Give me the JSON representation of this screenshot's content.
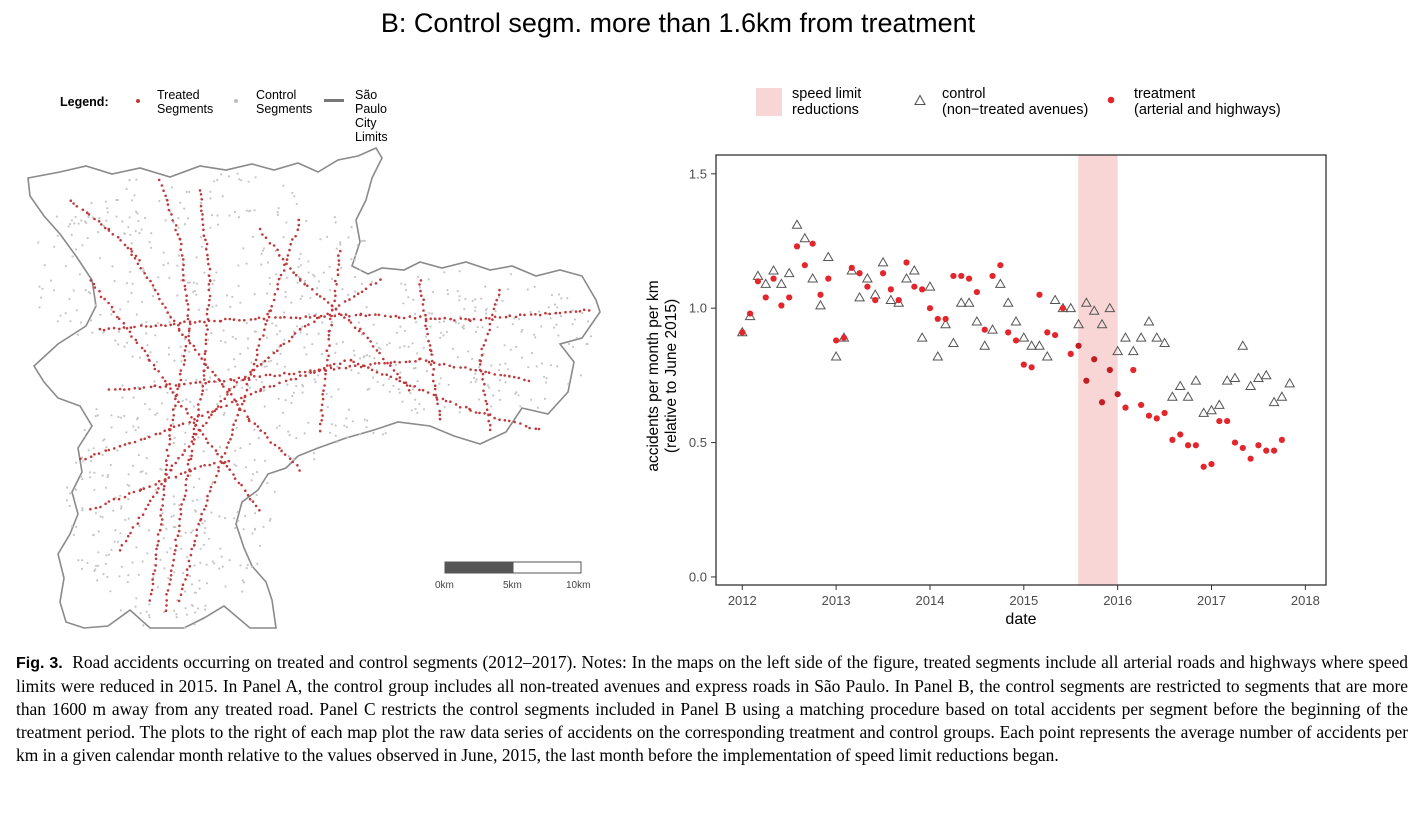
{
  "panel_title": "B: Control segm. more than 1.6km from treatment",
  "map": {
    "legend_title": "Legend:",
    "legend_items": [
      {
        "label_line1": "Treated",
        "label_line2": "Segments",
        "color": "#c0393b"
      },
      {
        "label_line1": "Control",
        "label_line2": "Segments",
        "color": "#bdbdbd"
      },
      {
        "label_line1": "São Paulo",
        "label_line2": "City Limits",
        "color": "#777777"
      }
    ],
    "scale_labels": [
      "0km",
      "5km",
      "10km"
    ]
  },
  "chart_legend": {
    "items": [
      {
        "label": "speed limit\nreductions",
        "symbol": "shaded-band",
        "color": "#f8d6d6"
      },
      {
        "label": "control\n(non−treated avenues)",
        "symbol": "open-triangle",
        "color": "#555555"
      },
      {
        "label": "treatment\n(arterial and highways)",
        "symbol": "filled-circle",
        "color": "#e3262b"
      }
    ]
  },
  "chart_data": {
    "type": "scatter",
    "xlabel": "date",
    "ylabel": "accidents per month per km\n(relative to June 2015)",
    "x_ticks": [
      "2012",
      "2013",
      "2014",
      "2015",
      "2016",
      "2017",
      "2018"
    ],
    "y_ticks": [
      "0.0",
      "0.5",
      "1.0",
      "1.5"
    ],
    "xlim": [
      2011.72,
      2018.22
    ],
    "ylim": [
      -0.03,
      1.57
    ],
    "grid": false,
    "shaded_region": {
      "x_start": 2015.58,
      "x_end": 2016.0,
      "label": "speed limit reductions"
    },
    "x_start": 2012.0,
    "x_step_months": 1,
    "series": [
      {
        "name": "control (non−treated avenues)",
        "marker": "triangle",
        "values": [
          0.91,
          0.97,
          1.12,
          1.09,
          1.14,
          1.09,
          1.13,
          1.31,
          1.26,
          1.11,
          1.01,
          1.19,
          0.82,
          0.89,
          1.14,
          1.04,
          1.11,
          1.05,
          1.17,
          1.03,
          1.02,
          1.11,
          1.14,
          0.89,
          1.08,
          0.82,
          0.94,
          0.87,
          1.02,
          1.02,
          0.95,
          0.86,
          0.92,
          1.09,
          1.02,
          0.95,
          0.89,
          0.86,
          0.86,
          0.82,
          1.03,
          1.0,
          1.0,
          0.94,
          1.02,
          0.99,
          0.94,
          1.0,
          0.84,
          0.89,
          0.84,
          0.89,
          0.95,
          0.89,
          0.87,
          0.67,
          0.71,
          0.67,
          0.73,
          0.61,
          0.62,
          0.64,
          0.73,
          0.74,
          0.86,
          0.71,
          0.74,
          0.75,
          0.65,
          0.67,
          0.72
        ]
      },
      {
        "name": "treatment (arterial and highways)",
        "marker": "circle",
        "values": [
          0.91,
          0.98,
          1.1,
          1.04,
          1.11,
          1.01,
          1.04,
          1.23,
          1.16,
          1.24,
          1.05,
          1.11,
          0.88,
          0.89,
          1.15,
          1.13,
          1.08,
          1.03,
          1.13,
          1.07,
          1.03,
          1.17,
          1.08,
          1.07,
          1.0,
          0.96,
          0.96,
          1.12,
          1.12,
          1.11,
          1.06,
          0.92,
          1.12,
          1.16,
          0.91,
          0.88,
          0.79,
          0.78,
          1.05,
          0.91,
          0.9,
          1.0,
          0.83,
          0.86,
          0.73,
          0.81,
          0.65,
          0.77,
          0.68,
          0.63,
          0.77,
          0.64,
          0.6,
          0.59,
          0.61,
          0.51,
          0.53,
          0.49,
          0.49,
          0.41,
          0.42,
          0.58,
          0.58,
          0.5,
          0.48,
          0.44,
          0.49,
          0.47,
          0.47,
          0.51
        ]
      }
    ]
  },
  "caption": {
    "label": "Fig. 3.",
    "text": "Road accidents occurring on treated and control segments (2012–2017). Notes: In the maps on the left side of the figure, treated segments include all arterial roads and highways where speed limits were reduced in 2015. In Panel A, the control group includes all non-treated avenues and express roads in São Paulo. In Panel B, the control segments are restricted to segments that are more than 1600 m away from any treated road. Panel C restricts the control segments included in Panel B using a matching procedure based on total accidents per segment before the beginning of the treatment period. The plots to the right of each map plot the raw data series of accidents on the corresponding treatment and control groups. Each point represents the average number of accidents per km in a given calendar month relative to the values observed in June, 2015, the last month before the implementation of speed limit reductions began."
  }
}
